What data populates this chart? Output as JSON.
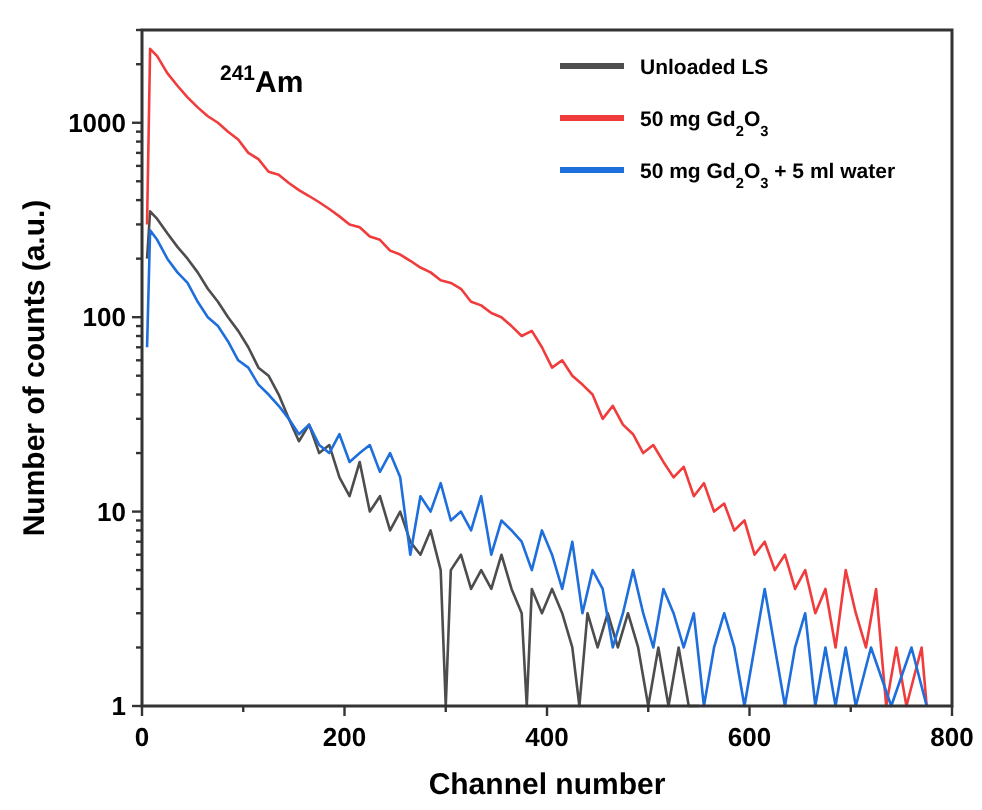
{
  "chart_data": {
    "type": "line",
    "xlabel": "Channel number",
    "ylabel": "Number of counts (a.u.)",
    "annotations": [
      "$^{241}$Am"
    ],
    "log": "y",
    "legend": "top right",
    "grid": false,
    "line_style": "solid",
    "xlim": [
      0,
      800
    ],
    "xticks": [
      0,
      {
        "value": 100,
        "label": null
      },
      200,
      {
        "value": 300,
        "label": null
      },
      400,
      {
        "value": 500,
        "label": null
      },
      600,
      {
        "value": 700,
        "label": null
      },
      800
    ],
    "ylim": [
      1,
      3000
    ],
    "yticks": [
      1,
      {
        "value": 2,
        "label": null
      },
      {
        "value": 3,
        "label": null
      },
      {
        "value": 4,
        "label": null
      },
      {
        "value": 5,
        "label": null
      },
      {
        "value": 6,
        "label": null
      },
      {
        "value": 7,
        "label": null
      },
      {
        "value": 8,
        "label": null
      },
      {
        "value": 9,
        "label": null
      },
      10,
      {
        "value": 20,
        "label": null
      },
      {
        "value": 30,
        "label": null
      },
      {
        "value": 40,
        "label": null
      },
      {
        "value": 50,
        "label": null
      },
      {
        "value": 60,
        "label": null
      },
      {
        "value": 70,
        "label": null
      },
      {
        "value": 80,
        "label": null
      },
      {
        "value": 90,
        "label": null
      },
      100,
      {
        "value": 200,
        "label": null
      },
      {
        "value": 300,
        "label": null
      },
      {
        "value": 400,
        "label": null
      },
      {
        "value": 500,
        "label": null
      },
      {
        "value": 600,
        "label": null
      },
      {
        "value": 700,
        "label": null
      },
      {
        "value": 800,
        "label": null
      },
      {
        "value": 900,
        "label": null
      },
      1000,
      {
        "value": 2000,
        "label": null
      },
      {
        "value": 3000,
        "label": null
      }
    ],
    "series": [
      {
        "name": "Unloaded LS",
        "color": "#4d4d4d",
        "x": [
          5,
          8,
          15,
          25,
          35,
          45,
          55,
          65,
          75,
          85,
          95,
          105,
          115,
          125,
          135,
          145,
          155,
          165,
          175,
          185,
          195,
          205,
          215,
          225,
          235,
          245,
          255,
          265,
          275,
          285,
          295,
          300,
          305,
          315,
          325,
          335,
          345,
          355,
          365,
          375,
          380,
          385,
          395,
          405,
          415,
          425,
          432,
          440,
          450,
          460,
          470,
          480,
          490,
          500,
          510,
          520,
          530,
          540,
          550
        ],
        "values": [
          200,
          350,
          320,
          270,
          230,
          200,
          170,
          140,
          120,
          100,
          85,
          70,
          55,
          50,
          40,
          30,
          23,
          28,
          20,
          22,
          15,
          12,
          18,
          10,
          12,
          8,
          10,
          7,
          6,
          8,
          5,
          1,
          5,
          6,
          4,
          5,
          4,
          6,
          4,
          3,
          1,
          4,
          3,
          4,
          3,
          2,
          1,
          3,
          2,
          3,
          2,
          3,
          2,
          1,
          2,
          1,
          2,
          1,
          1
        ]
      },
      {
        "name": "50 mg Gd$_{2}$O$_{3}$",
        "color": "#f03c3c",
        "x": [
          5,
          8,
          15,
          25,
          35,
          45,
          55,
          65,
          75,
          85,
          95,
          105,
          115,
          125,
          135,
          145,
          155,
          165,
          175,
          185,
          195,
          205,
          215,
          225,
          235,
          245,
          255,
          265,
          275,
          285,
          295,
          305,
          315,
          325,
          335,
          345,
          355,
          365,
          375,
          385,
          395,
          405,
          415,
          425,
          435,
          445,
          455,
          465,
          475,
          485,
          495,
          505,
          515,
          525,
          535,
          545,
          555,
          565,
          575,
          585,
          595,
          605,
          615,
          625,
          635,
          645,
          655,
          665,
          675,
          685,
          695,
          705,
          715,
          725,
          735,
          745,
          755,
          770,
          775
        ],
        "values": [
          300,
          2400,
          2200,
          1800,
          1550,
          1350,
          1200,
          1080,
          1000,
          900,
          820,
          700,
          650,
          560,
          540,
          490,
          450,
          420,
          390,
          360,
          330,
          300,
          290,
          260,
          250,
          220,
          210,
          195,
          180,
          170,
          155,
          150,
          140,
          120,
          115,
          105,
          100,
          90,
          80,
          85,
          70,
          55,
          60,
          50,
          45,
          40,
          30,
          35,
          28,
          25,
          20,
          22,
          18,
          15,
          17,
          12,
          14,
          10,
          11,
          8,
          9,
          6,
          7,
          5,
          6,
          4,
          5,
          3,
          4,
          2,
          5,
          3,
          2,
          4,
          1,
          2,
          1,
          2,
          1
        ]
      },
      {
        "name": "50 mg Gd$_{2}$O$_{3}$ + 5 ml water",
        "color": "#1e6fdc",
        "x": [
          5,
          8,
          15,
          25,
          35,
          45,
          55,
          65,
          75,
          85,
          95,
          105,
          115,
          125,
          135,
          145,
          155,
          165,
          175,
          185,
          195,
          205,
          215,
          225,
          235,
          245,
          255,
          265,
          275,
          285,
          295,
          305,
          315,
          325,
          335,
          345,
          355,
          365,
          375,
          385,
          395,
          405,
          415,
          425,
          435,
          445,
          455,
          465,
          475,
          485,
          495,
          505,
          515,
          525,
          535,
          545,
          555,
          565,
          575,
          585,
          595,
          605,
          615,
          625,
          635,
          645,
          655,
          665,
          675,
          685,
          695,
          705,
          720,
          740,
          760,
          775
        ],
        "values": [
          70,
          280,
          250,
          200,
          170,
          150,
          120,
          100,
          90,
          75,
          60,
          55,
          45,
          40,
          35,
          30,
          25,
          28,
          22,
          20,
          25,
          18,
          20,
          22,
          16,
          20,
          15,
          6,
          12,
          10,
          14,
          9,
          10,
          8,
          12,
          6,
          9,
          8,
          7,
          5,
          8,
          6,
          4,
          7,
          3,
          5,
          4,
          2,
          3,
          5,
          3,
          2,
          4,
          3,
          2,
          3,
          1,
          2,
          3,
          2,
          1,
          2,
          4,
          2,
          1,
          2,
          3,
          1,
          2,
          1,
          2,
          1,
          2,
          1,
          2,
          1
        ]
      }
    ]
  }
}
